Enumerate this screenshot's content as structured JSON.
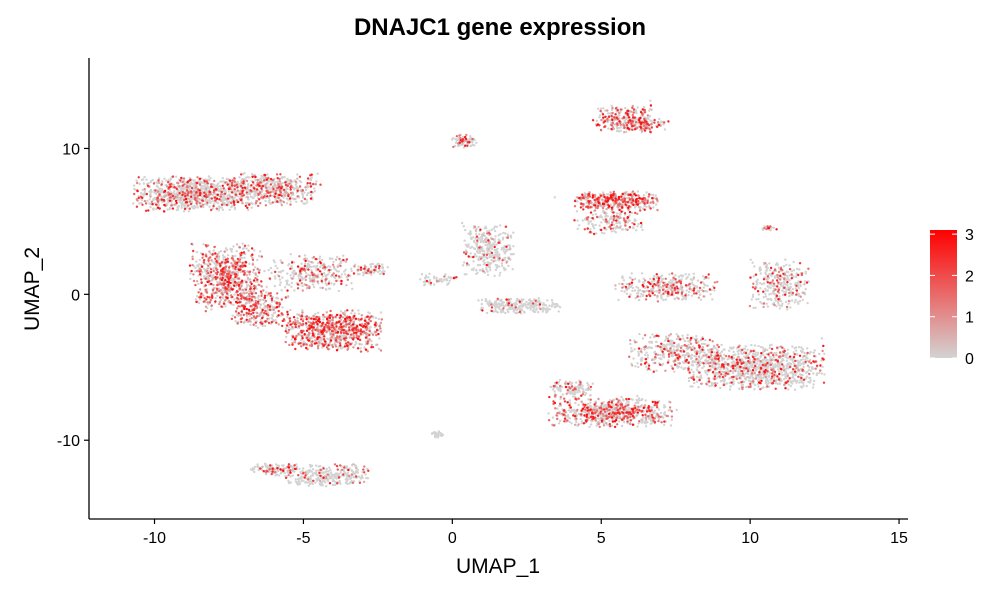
{
  "chart_data": {
    "type": "scatter",
    "title": "DNAJC1 gene expression",
    "xlabel": "UMAP_1",
    "ylabel": "UMAP_2",
    "xlim": [
      -12.2,
      15.3
    ],
    "ylim": [
      -15.4,
      16.2
    ],
    "x_ticks": [
      -10,
      -5,
      0,
      5,
      10,
      15
    ],
    "y_ticks": [
      -10,
      0,
      10
    ],
    "x_tick_labels": [
      "-10",
      "-5",
      "0",
      "5",
      "10",
      "15"
    ],
    "y_tick_labels": [
      "-10",
      "0",
      "10"
    ],
    "grid": false,
    "legend_position": "right",
    "color_scale": {
      "low_color": "#d3d3d3",
      "high_color": "#ff0000",
      "min": 0,
      "max": 3.1,
      "ticks": [
        0,
        1,
        2,
        3
      ],
      "tick_labels": [
        "0",
        "1",
        "2",
        "3"
      ]
    },
    "clusters": [
      {
        "center": [
          -8.6,
          6.9
        ],
        "spread": [
          1.9,
          1.1
        ],
        "mean_expression": 0.55,
        "points": 900
      },
      {
        "center": [
          -6.0,
          7.2
        ],
        "spread": [
          1.4,
          1.0
        ],
        "mean_expression": 0.6,
        "points": 420
      },
      {
        "center": [
          -7.6,
          1.2
        ],
        "spread": [
          1.1,
          2.1
        ],
        "mean_expression": 1.0,
        "points": 700
      },
      {
        "center": [
          -6.5,
          -1.0
        ],
        "spread": [
          0.9,
          1.2
        ],
        "mean_expression": 0.95,
        "points": 260
      },
      {
        "center": [
          -4.0,
          -2.5
        ],
        "spread": [
          1.5,
          1.3
        ],
        "mean_expression": 1.1,
        "points": 750
      },
      {
        "center": [
          -4.7,
          1.5
        ],
        "spread": [
          1.4,
          1.2
        ],
        "mean_expression": 0.5,
        "points": 300
      },
      {
        "center": [
          -2.7,
          1.7
        ],
        "spread": [
          0.5,
          0.4
        ],
        "mean_expression": 0.4,
        "points": 80
      },
      {
        "center": [
          1.2,
          3.0
        ],
        "spread": [
          0.8,
          1.6
        ],
        "mean_expression": 0.25,
        "points": 320
      },
      {
        "center": [
          2.3,
          -0.8
        ],
        "spread": [
          1.3,
          0.5
        ],
        "mean_expression": 0.15,
        "points": 260
      },
      {
        "center": [
          -0.5,
          1.0
        ],
        "spread": [
          0.6,
          0.4
        ],
        "mean_expression": 0.35,
        "points": 50
      },
      {
        "center": [
          0.4,
          10.5
        ],
        "spread": [
          0.4,
          0.4
        ],
        "mean_expression": 0.5,
        "points": 90
      },
      {
        "center": [
          5.7,
          12.0
        ],
        "spread": [
          0.9,
          0.9
        ],
        "mean_expression": 0.8,
        "points": 260
      },
      {
        "center": [
          6.5,
          11.7
        ],
        "spread": [
          0.7,
          0.4
        ],
        "mean_expression": 0.6,
        "points": 90
      },
      {
        "center": [
          5.5,
          6.4
        ],
        "spread": [
          1.3,
          0.6
        ],
        "mean_expression": 1.1,
        "points": 380
      },
      {
        "center": [
          5.3,
          5.0
        ],
        "spread": [
          1.1,
          0.8
        ],
        "mean_expression": 0.6,
        "points": 160
      },
      {
        "center": [
          7.2,
          0.5
        ],
        "spread": [
          1.6,
          0.9
        ],
        "mean_expression": 0.55,
        "points": 340
      },
      {
        "center": [
          11.0,
          0.6
        ],
        "spread": [
          0.9,
          1.5
        ],
        "mean_expression": 0.35,
        "points": 320
      },
      {
        "center": [
          10.2,
          -5.0
        ],
        "spread": [
          2.1,
          1.4
        ],
        "mean_expression": 0.45,
        "points": 1000
      },
      {
        "center": [
          7.5,
          -4.0
        ],
        "spread": [
          1.5,
          1.2
        ],
        "mean_expression": 0.5,
        "points": 380
      },
      {
        "center": [
          5.3,
          -8.1
        ],
        "spread": [
          1.9,
          0.9
        ],
        "mean_expression": 0.75,
        "points": 700
      },
      {
        "center": [
          4.0,
          -6.5
        ],
        "spread": [
          0.7,
          0.6
        ],
        "mean_expression": 0.55,
        "points": 120
      },
      {
        "center": [
          -0.5,
          -9.6
        ],
        "spread": [
          0.2,
          0.2
        ],
        "mean_expression": 0.05,
        "points": 30
      },
      {
        "center": [
          -4.2,
          -12.4
        ],
        "spread": [
          1.3,
          0.7
        ],
        "mean_expression": 0.3,
        "points": 300
      },
      {
        "center": [
          -6.0,
          -12.0
        ],
        "spread": [
          0.7,
          0.4
        ],
        "mean_expression": 0.5,
        "points": 120
      },
      {
        "center": [
          10.7,
          4.5
        ],
        "spread": [
          0.3,
          0.2
        ],
        "mean_expression": 0.4,
        "points": 20
      }
    ]
  }
}
